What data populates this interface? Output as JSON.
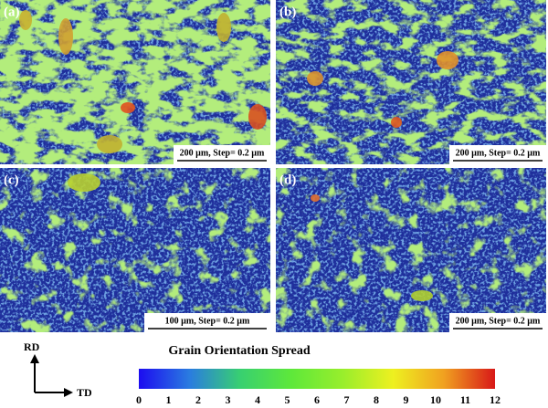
{
  "panels": [
    {
      "label": "(a)",
      "scale_text": "200 µm, Step= 0.2 µm"
    },
    {
      "label": "(b)",
      "scale_text": "200 µm, Step= 0.2 µm"
    },
    {
      "label": "(c)",
      "scale_text": "100 µm, Step= 0.2 µm"
    },
    {
      "label": "(d)",
      "scale_text": "200 µm, Step= 0.2 µm"
    }
  ],
  "axes": {
    "vertical": "RD",
    "horizontal": "TD"
  },
  "colorbar": {
    "title": "Grain Orientation Spread",
    "range": [
      0,
      12
    ],
    "ticks": [
      0,
      1,
      2,
      3,
      4,
      5,
      6,
      7,
      8,
      9,
      10,
      11,
      12
    ],
    "colors": [
      "#1c0cf0",
      "#2a7ce0",
      "#38d070",
      "#5ee83a",
      "#98ee2c",
      "#eef020",
      "#f0a020",
      "#d81818"
    ]
  }
}
